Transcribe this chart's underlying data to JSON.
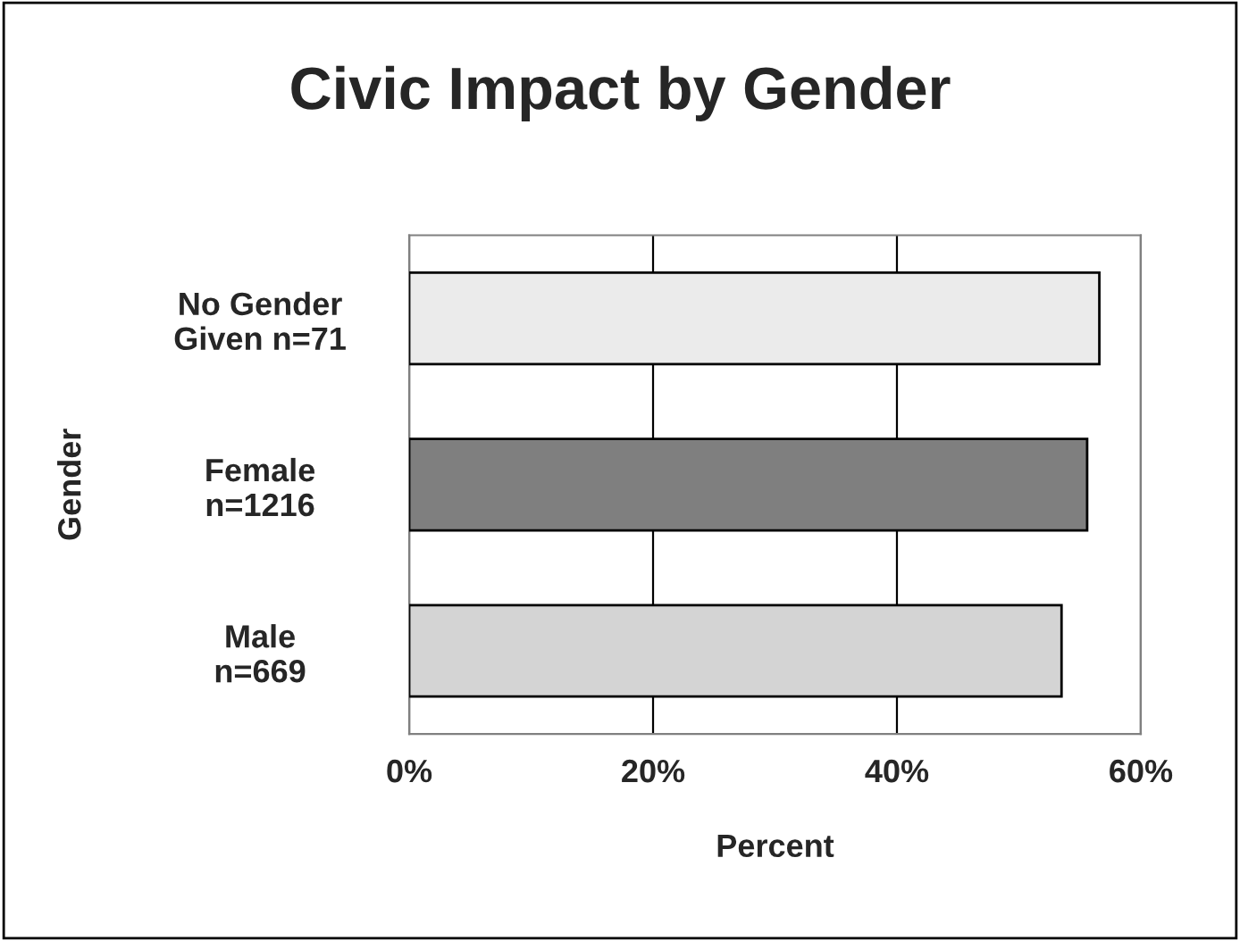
{
  "chart_data": {
    "type": "bar",
    "orientation": "horizontal",
    "title": "Civic Impact by Gender",
    "xlabel": "Percent",
    "ylabel": "Gender",
    "categories": [
      "No Gender\nGiven n=71",
      "Female\nn=1216",
      "Male\nn=669"
    ],
    "values": [
      56.6,
      55.6,
      53.5
    ],
    "colors": [
      "#ebebeb",
      "#7f7f7f",
      "#d4d4d4"
    ],
    "xlim": [
      0,
      60
    ],
    "xticks": [
      {
        "value": 0,
        "label": "0%"
      },
      {
        "value": 20,
        "label": "20%"
      },
      {
        "value": 40,
        "label": "40%"
      },
      {
        "value": 60,
        "label": "60%"
      }
    ],
    "grid": "x"
  }
}
